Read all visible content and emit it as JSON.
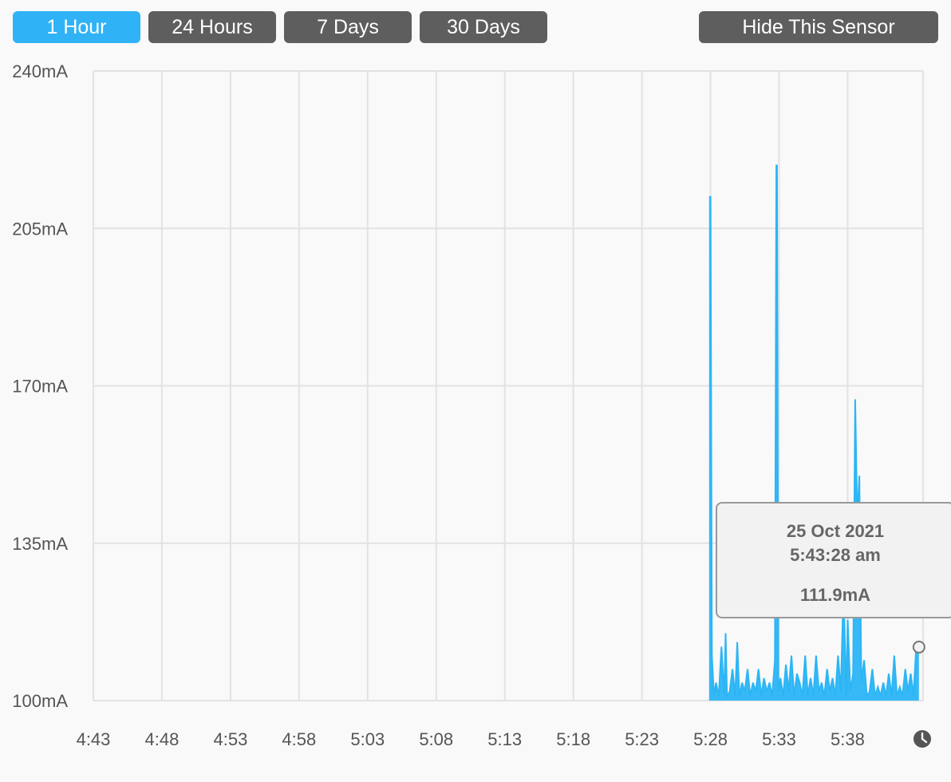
{
  "toolbar": {
    "range_buttons": [
      {
        "label": "1 Hour",
        "active": true
      },
      {
        "label": "24 Hours",
        "active": false
      },
      {
        "label": "7 Days",
        "active": false
      },
      {
        "label": "30 Days",
        "active": false
      }
    ],
    "hide_label": "Hide This Sensor"
  },
  "colors": {
    "accent": "#2fb3f6",
    "button": "#5e5e5e",
    "series": "#2bb5f5",
    "grid": "#e2e2e2"
  },
  "tooltip": {
    "date": "25 Oct 2021",
    "time": "5:43:28 am",
    "value": "111.9mA"
  },
  "chart_data": {
    "type": "area",
    "ylim": [
      100,
      240
    ],
    "y_ticks": [
      {
        "value": 240,
        "label": "240mA"
      },
      {
        "value": 205,
        "label": "205mA"
      },
      {
        "value": 170,
        "label": "170mA"
      },
      {
        "value": 135,
        "label": "135mA"
      },
      {
        "value": 100,
        "label": "100mA"
      }
    ],
    "xlim": [
      0,
      60.5
    ],
    "x_ticks": [
      {
        "value": 0,
        "label": "4:43"
      },
      {
        "value": 5,
        "label": "4:48"
      },
      {
        "value": 10,
        "label": "4:53"
      },
      {
        "value": 15,
        "label": "4:58"
      },
      {
        "value": 20,
        "label": "5:03"
      },
      {
        "value": 25,
        "label": "5:08"
      },
      {
        "value": 30,
        "label": "5:13"
      },
      {
        "value": 35,
        "label": "5:18"
      },
      {
        "value": 40,
        "label": "5:23"
      },
      {
        "value": 45,
        "label": "5:28"
      },
      {
        "value": 50,
        "label": "5:33"
      },
      {
        "value": 55,
        "label": "5:38"
      }
    ],
    "grid": true,
    "clock_icon": "clock-icon",
    "series": [
      {
        "x": [
          44.9,
          45.0,
          45.1,
          45.25,
          45.4,
          45.6,
          45.8,
          46.0,
          46.1,
          46.2,
          46.4,
          46.6,
          46.8,
          46.95,
          47.1,
          47.3,
          47.5,
          47.7,
          47.9,
          48.1,
          48.3,
          48.5,
          48.7,
          48.9,
          49.1,
          49.3,
          49.5,
          49.7,
          49.8,
          49.85,
          49.95,
          50.1,
          50.3,
          50.5,
          50.7,
          50.9,
          51.1,
          51.3,
          51.5,
          51.7,
          51.9,
          52.1,
          52.3,
          52.5,
          52.7,
          52.9,
          53.1,
          53.3,
          53.5,
          53.7,
          53.9,
          54.1,
          54.3,
          54.5,
          54.7,
          54.9,
          55.0,
          55.2,
          55.4,
          55.55,
          55.7,
          55.85,
          56.0,
          56.2,
          56.4,
          56.6,
          56.8,
          57.0,
          57.2,
          57.4,
          57.6,
          57.8,
          58.0,
          58.2,
          58.4,
          58.6,
          58.8,
          59.0,
          59.2,
          59.4,
          59.6,
          59.8,
          60.0,
          60.2
        ],
        "y": [
          212,
          212,
          110,
          101,
          104,
          101,
          112,
          101,
          115,
          101,
          102,
          107,
          101,
          113,
          101,
          104,
          102,
          107,
          101,
          104,
          102,
          107,
          101,
          105,
          102,
          104,
          101,
          109,
          219,
          219,
          102,
          105,
          101,
          108,
          102,
          110,
          101,
          106,
          104,
          101,
          110,
          101,
          105,
          101,
          110,
          102,
          104,
          101,
          107,
          102,
          105,
          101,
          110,
          102,
          125,
          101,
          118,
          102,
          106,
          167,
          140,
          150,
          104,
          109,
          101,
          102,
          107,
          101,
          103,
          101,
          104,
          101,
          106,
          101,
          110,
          101,
          103,
          101,
          107,
          102,
          106,
          101,
          112,
          111.9
        ]
      }
    ]
  }
}
